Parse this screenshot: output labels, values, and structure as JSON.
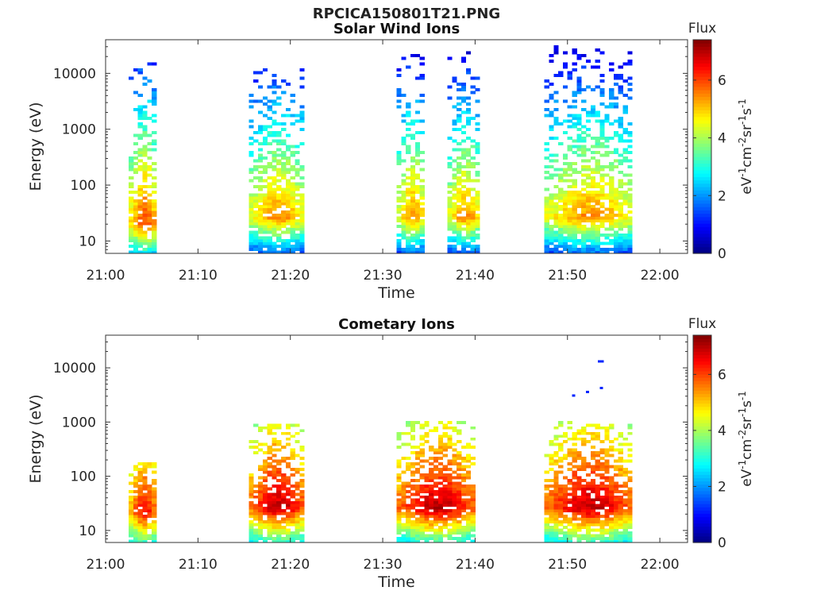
{
  "figure": {
    "title": "RPCICA150801T21.PNG"
  },
  "chart_data": [
    {
      "type": "heatmap",
      "title": "Solar Wind Ions",
      "xlabel": "Time",
      "ylabel": "Energy (eV)",
      "y_scale": "log",
      "xlim": [
        "21:00",
        "22:03"
      ],
      "ylim": [
        6,
        40000
      ],
      "x_ticks": [
        "21:00",
        "21:10",
        "21:20",
        "21:30",
        "21:40",
        "21:50",
        "22:00"
      ],
      "y_ticks": [
        10,
        100,
        1000,
        10000
      ],
      "y_tick_labels": [
        "10",
        "100",
        "1000",
        "10000"
      ],
      "colorbar": {
        "title": "Flux",
        "label": "eV-1cm-2sr-1s-1",
        "range": [
          0,
          7.4
        ],
        "ticks": [
          0,
          2,
          4,
          6
        ],
        "colormap": "jet"
      },
      "grid": false,
      "bursts": [
        {
          "start": "21:02.5",
          "end": "21:05.5",
          "peak_flux": 6.0,
          "peak_energy_eV": 20,
          "max_energy_eV": 15000
        },
        {
          "start": "21:15.5",
          "end": "21:21.5",
          "peak_flux": 5.5,
          "peak_energy_eV": 25,
          "max_energy_eV": 12000
        },
        {
          "start": "21:31.5",
          "end": "21:34.5",
          "peak_flux": 5.5,
          "peak_energy_eV": 25,
          "max_energy_eV": 20000
        },
        {
          "start": "21:37",
          "end": "21:40.5",
          "peak_flux": 5.5,
          "peak_energy_eV": 25,
          "max_energy_eV": 25000
        },
        {
          "start": "21:47.5",
          "end": "21:57",
          "peak_flux": 5.5,
          "peak_energy_eV": 25,
          "max_energy_eV": 30000
        }
      ]
    },
    {
      "type": "heatmap",
      "title": "Cometary Ions",
      "xlabel": "Time",
      "ylabel": "Energy (eV)",
      "y_scale": "log",
      "xlim": [
        "21:00",
        "22:03"
      ],
      "ylim": [
        6,
        40000
      ],
      "x_ticks": [
        "21:00",
        "21:10",
        "21:20",
        "21:30",
        "21:40",
        "21:50",
        "22:00"
      ],
      "y_ticks": [
        10,
        100,
        1000,
        10000
      ],
      "y_tick_labels": [
        "10",
        "100",
        "1000",
        "10000"
      ],
      "colorbar": {
        "title": "Flux",
        "label": "eV-1cm-2sr-1s-1",
        "range": [
          0,
          7.4
        ],
        "ticks": [
          0,
          2,
          4,
          6
        ],
        "colormap": "jet"
      },
      "grid": false,
      "bursts": [
        {
          "start": "21:02.5",
          "end": "21:05.5",
          "peak_flux": 6.5,
          "peak_energy_eV": 20,
          "max_energy_eV": 180
        },
        {
          "start": "21:15.5",
          "end": "21:21.5",
          "peak_flux": 7.0,
          "peak_energy_eV": 25,
          "max_energy_eV": 900
        },
        {
          "start": "21:31.5",
          "end": "21:40",
          "peak_flux": 7.0,
          "peak_energy_eV": 25,
          "max_energy_eV": 1000
        },
        {
          "start": "21:47.5",
          "end": "21:57",
          "peak_flux": 7.0,
          "peak_energy_eV": 25,
          "max_energy_eV": 1000
        }
      ],
      "isolated_points": [
        {
          "time": "21:50.5",
          "energy_eV": 3000
        },
        {
          "time": "21:52",
          "energy_eV": 3500
        },
        {
          "time": "21:53.5",
          "energy_eV": 4200
        },
        {
          "time": "21:53.3",
          "energy_eV": 13000
        },
        {
          "time": "21:53.6",
          "energy_eV": 13000
        }
      ]
    }
  ]
}
